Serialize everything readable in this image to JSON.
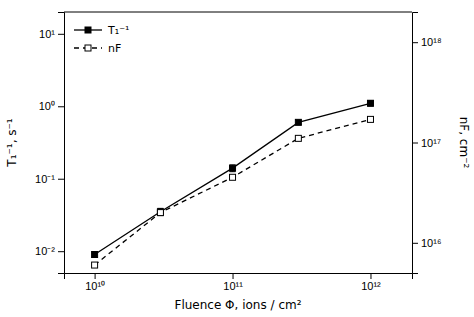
{
  "chart_data": {
    "type": "line",
    "log": true,
    "xlabel": "Fluence Φ, ions / cm²",
    "ylabel": "T₁⁻¹, s⁻¹",
    "y2label": "nF, cm⁻²",
    "x": [
      10000000000.0,
      30000000000.0,
      100000000000.0,
      300000000000.0,
      1000000000000.0
    ],
    "xlim": [
      6000000000.0,
      2000000000000.0
    ],
    "xticks": [
      {
        "value": 10000000000.0,
        "label": "10¹⁰"
      },
      {
        "value": 100000000000.0,
        "label": "10¹¹"
      },
      {
        "value": 1000000000000.0,
        "label": "10¹²"
      }
    ],
    "ylim": [
      0.005,
      20.0
    ],
    "yticks": [
      {
        "value": 0.01,
        "label": "10⁻²"
      },
      {
        "value": 0.1,
        "label": "10⁻¹"
      },
      {
        "value": 1,
        "label": "10⁰"
      },
      {
        "value": 10.0,
        "label": "10¹"
      }
    ],
    "y2lim": [
      5000000000000000.0,
      2e+18
    ],
    "y2ticks": [
      {
        "value": 1e+16,
        "label": "10¹⁶"
      },
      {
        "value": 1e+17,
        "label": "10¹⁷"
      },
      {
        "value": 1e+18,
        "label": "10¹⁸"
      }
    ],
    "grid": false,
    "legend": "upper left",
    "series": [
      {
        "name": "T₁⁻¹",
        "color": "black",
        "marker": "square",
        "line_style": "solid",
        "values": [
          0.009,
          0.035,
          0.14,
          0.6,
          1.1
        ],
        "errors": [
          0.0008,
          0.004,
          0.015,
          0.04,
          0.09
        ]
      },
      {
        "name": "nF",
        "color": "black",
        "marker": "square-open",
        "line_style": "dashed",
        "axis": "y2",
        "values": [
          6000000000000000.0,
          2e+16,
          4.5e+16,
          1.1e+17,
          1.7e+17
        ]
      }
    ]
  }
}
